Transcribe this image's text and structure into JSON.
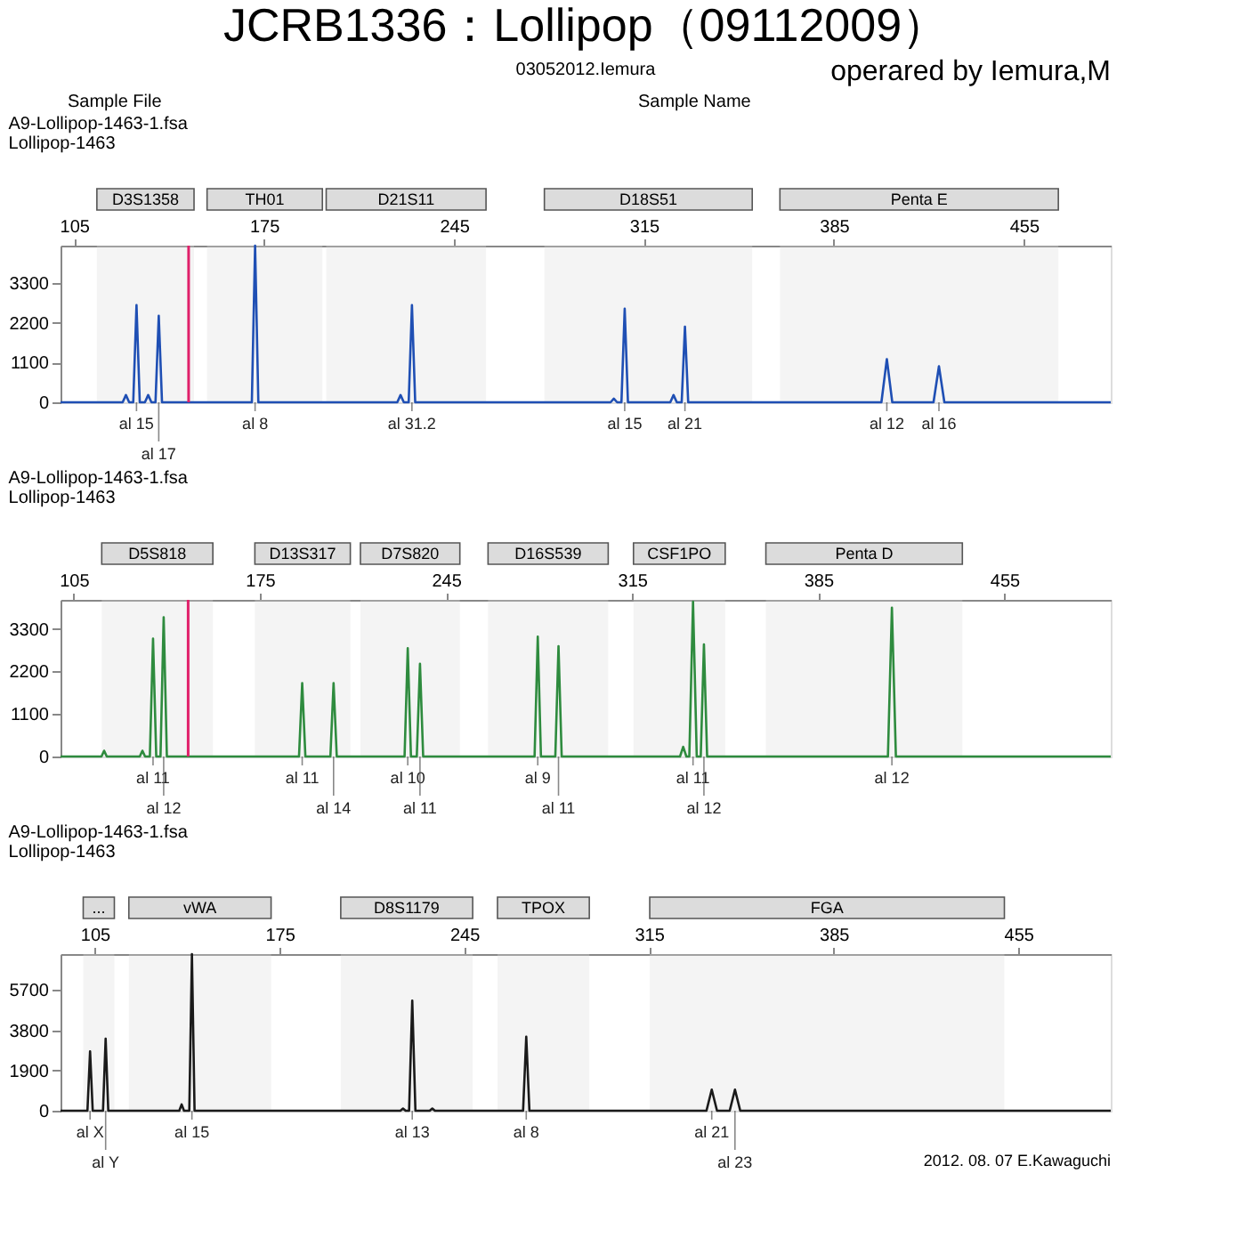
{
  "chart_data": [
    {
      "type": "other",
      "title": "JCRB1336：Lollipop（09112009）",
      "subtitle": "03052012.Iemura",
      "annotations": [
        "operared by Iemura,M",
        "Sample File",
        "Sample Name"
      ]
    },
    {
      "type": "line",
      "title": "A9-Lollipop-1463-1.fsa",
      "subtitle": "Lollipop-1463",
      "xlim": [
        100,
        487
      ],
      "xticks": [
        105,
        175,
        245,
        315,
        385,
        455
      ],
      "ylim": [
        0,
        4350
      ],
      "yticks": [
        0,
        1100,
        2200,
        3300
      ],
      "grid": false,
      "legend": false,
      "marker": "none",
      "line_style": "solid",
      "series": [
        {
          "color": "#1f4fb4",
          "x": [
            100,
            122.9,
            124.1,
            125.3,
            126.8,
            128.0,
            129.2,
            131.1,
            132.3,
            133.5,
            135.0,
            136.2,
            137.4,
            170.5,
            171.7,
            172.9,
            224.1,
            225.3,
            226.5,
            228.3,
            229.5,
            230.7,
            302.7,
            303.9,
            305.1,
            306.7,
            307.9,
            309.1,
            324.7,
            325.9,
            327.1,
            328.9,
            330.1,
            331.3,
            402.5,
            404.5,
            406.5,
            421.7,
            423.7,
            425.7,
            487
          ],
          "values": [
            0,
            0,
            200,
            0,
            0,
            2700,
            0,
            0,
            200,
            0,
            0,
            2400,
            0,
            0,
            4350,
            0,
            0,
            200,
            0,
            0,
            2700,
            0,
            0,
            100,
            0,
            0,
            2600,
            0,
            0,
            200,
            0,
            0,
            2100,
            0,
            0,
            1200,
            0,
            0,
            1000,
            0,
            0
          ]
        }
      ],
      "ref_lines": [
        {
          "axis": "x",
          "value": 147.2,
          "color": "#e0206a"
        }
      ],
      "bands": [
        {
          "axis": "x",
          "from": 113.4,
          "to": 149.2,
          "label": "D3S1358",
          "color": "#dcdcdc"
        },
        {
          "axis": "x",
          "from": 154.0,
          "to": 196.5,
          "label": "TH01",
          "color": "#dcdcdc"
        },
        {
          "axis": "x",
          "from": 197.9,
          "to": 256.8,
          "label": "D21S11",
          "color": "#dcdcdc"
        },
        {
          "axis": "x",
          "from": 278.3,
          "to": 354.9,
          "label": "D18S51",
          "color": "#dcdcdc"
        },
        {
          "axis": "x",
          "from": 365.1,
          "to": 467.7,
          "label": "Penta E",
          "color": "#dcdcdc"
        }
      ],
      "annotations": [
        {
          "text": "al 15",
          "x": 128.0,
          "y": 0
        },
        {
          "text": "al 17",
          "x": 136.2,
          "y": 0
        },
        {
          "text": "al 8",
          "x": 171.7,
          "y": 0
        },
        {
          "text": "al 31.2",
          "x": 229.5,
          "y": 0
        },
        {
          "text": "al 15",
          "x": 307.9,
          "y": 0
        },
        {
          "text": "al 21",
          "x": 330.1,
          "y": 0
        },
        {
          "text": "al 12",
          "x": 404.5,
          "y": 0
        },
        {
          "text": "al 16",
          "x": 423.7,
          "y": 0
        }
      ]
    },
    {
      "type": "line",
      "title": "A9-Lollipop-1463-1.fsa",
      "subtitle": "Lollipop-1463",
      "xlim": [
        100,
        495
      ],
      "xticks": [
        105,
        175,
        245,
        315,
        385,
        455
      ],
      "ylim": [
        0,
        4050
      ],
      "yticks": [
        0,
        1100,
        2200,
        3300
      ],
      "grid": false,
      "legend": false,
      "marker": "none",
      "line_style": "solid",
      "series": [
        {
          "color": "#2e8b3e",
          "x": [
            100,
            115.4,
            116.4,
            117.4,
            129.8,
            130.8,
            131.8,
            133.6,
            134.8,
            136.0,
            137.6,
            138.8,
            140.0,
            189.7,
            190.9,
            192.1,
            201.5,
            202.7,
            203.9,
            229.4,
            230.6,
            231.8,
            234.0,
            235.2,
            236.4,
            278.3,
            279.5,
            280.7,
            286.1,
            287.3,
            288.5,
            333.0,
            334.2,
            335.4,
            336.5,
            337.9,
            339.3,
            340.8,
            342.0,
            343.2,
            411.2,
            412.7,
            414.2,
            495
          ],
          "values": [
            0,
            0,
            150,
            0,
            0,
            150,
            0,
            0,
            3050,
            0,
            0,
            3600,
            0,
            0,
            1900,
            0,
            0,
            1900,
            0,
            0,
            2800,
            0,
            0,
            2400,
            0,
            0,
            3100,
            0,
            0,
            2850,
            0,
            0,
            250,
            0,
            0,
            4000,
            0,
            0,
            2900,
            0,
            0,
            3850,
            0,
            0
          ]
        }
      ],
      "ref_lines": [
        {
          "axis": "x",
          "value": 148.0,
          "color": "#e0206a"
        }
      ],
      "bands": [
        {
          "axis": "x",
          "from": 115.5,
          "to": 157.3,
          "label": "D5S818",
          "color": "#dcdcdc"
        },
        {
          "axis": "x",
          "from": 173.1,
          "to": 209.0,
          "label": "D13S317",
          "color": "#dcdcdc"
        },
        {
          "axis": "x",
          "from": 212.8,
          "to": 250.2,
          "label": "D7S820",
          "color": "#dcdcdc"
        },
        {
          "axis": "x",
          "from": 260.8,
          "to": 306.0,
          "label": "D16S539",
          "color": "#dcdcdc"
        },
        {
          "axis": "x",
          "from": 315.5,
          "to": 350.0,
          "label": "CSF1PO",
          "color": "#dcdcdc"
        },
        {
          "axis": "x",
          "from": 365.3,
          "to": 439.2,
          "label": "Penta D",
          "color": "#dcdcdc"
        }
      ],
      "annotations": [
        {
          "text": "al 11",
          "x": 134.8,
          "y": 0
        },
        {
          "text": "al 12",
          "x": 138.8,
          "y": 0
        },
        {
          "text": "al 11",
          "x": 190.9,
          "y": 0
        },
        {
          "text": "al 14",
          "x": 202.7,
          "y": 0
        },
        {
          "text": "al 10",
          "x": 230.6,
          "y": 0
        },
        {
          "text": "al 11",
          "x": 235.2,
          "y": 0
        },
        {
          "text": "al 9",
          "x": 279.5,
          "y": 0
        },
        {
          "text": "al 11",
          "x": 287.3,
          "y": 0
        },
        {
          "text": "al 11",
          "x": 337.9,
          "y": 0
        },
        {
          "text": "al 12",
          "x": 342.0,
          "y": 0
        },
        {
          "text": "al 12",
          "x": 412.7,
          "y": 0
        }
      ]
    },
    {
      "type": "line",
      "title": "A9-Lollipop-1463-1.fsa",
      "subtitle": "Lollipop-1463",
      "xlim": [
        92,
        490
      ],
      "xticks": [
        105,
        175,
        245,
        315,
        385,
        455
      ],
      "ylim": [
        0,
        7400
      ],
      "yticks": [
        0,
        1900,
        3800,
        5700
      ],
      "grid": false,
      "legend": false,
      "marker": "none",
      "line_style": "solid",
      "series": [
        {
          "color": "#1a1a1a",
          "x": [
            92,
            102.2,
            103.2,
            104.2,
            108.1,
            109.1,
            110.1,
            137.0,
            137.9,
            138.8,
            140.8,
            141.8,
            142.8,
            220.8,
            221.8,
            222.8,
            224.1,
            225.3,
            226.5,
            231.9,
            232.9,
            233.9,
            267.3,
            268.5,
            269.7,
            336.8,
            338.8,
            340.8,
            345.6,
            347.6,
            349.6,
            490
          ],
          "values": [
            0,
            0,
            2800,
            0,
            0,
            3400,
            0,
            0,
            300,
            0,
            0,
            7400,
            0,
            0,
            100,
            0,
            0,
            5200,
            0,
            0,
            100,
            0,
            0,
            3500,
            0,
            0,
            1000,
            0,
            0,
            1000,
            0,
            0
          ]
        }
      ],
      "bands": [
        {
          "axis": "x",
          "from": 100.6,
          "to": 112.4,
          "label": "...",
          "color": "#dcdcdc"
        },
        {
          "axis": "x",
          "from": 117.9,
          "to": 171.8,
          "label": "vWA",
          "color": "#dcdcdc"
        },
        {
          "axis": "x",
          "from": 198.2,
          "to": 248.2,
          "label": "D8S1179",
          "color": "#dcdcdc"
        },
        {
          "axis": "x",
          "from": 257.6,
          "to": 292.4,
          "label": "TPOX",
          "color": "#dcdcdc"
        },
        {
          "axis": "x",
          "from": 315.3,
          "to": 449.7,
          "label": "FGA",
          "color": "#dcdcdc"
        }
      ],
      "annotations": [
        {
          "text": "al X",
          "x": 103.2,
          "y": 0
        },
        {
          "text": "al Y",
          "x": 109.1,
          "y": 0
        },
        {
          "text": "al 15",
          "x": 141.8,
          "y": 0
        },
        {
          "text": "al 13",
          "x": 225.3,
          "y": 0
        },
        {
          "text": "al 8",
          "x": 268.5,
          "y": 0
        },
        {
          "text": "al 21",
          "x": 338.8,
          "y": 0
        },
        {
          "text": "al 23",
          "x": 347.6,
          "y": 0
        },
        "2012. 08. 07 E.Kawaguchi"
      ]
    }
  ]
}
